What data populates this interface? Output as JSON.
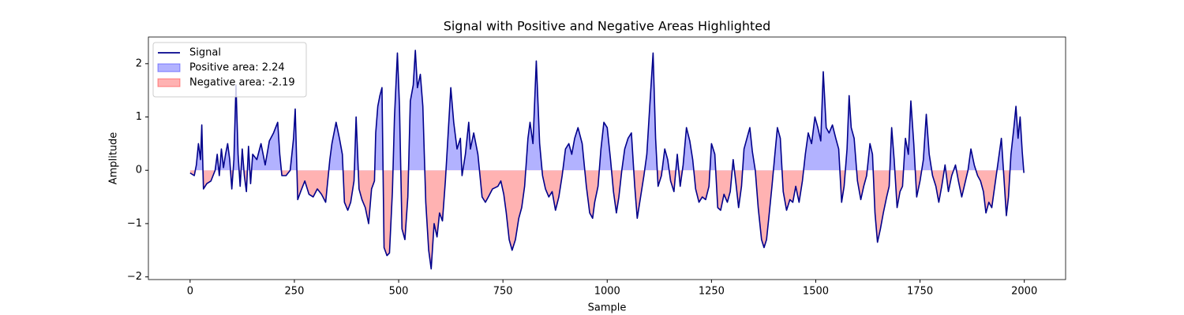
{
  "chart_data": {
    "type": "line",
    "title": "Signal with Positive and Negative Areas Highlighted",
    "x_label": "Sample",
    "y_label": "Amplitude",
    "x": [
      0,
      10,
      15,
      20,
      25,
      28,
      32,
      40,
      50,
      60,
      65,
      70,
      75,
      80,
      85,
      90,
      95,
      100,
      105,
      110,
      115,
      120,
      125,
      130,
      135,
      140,
      145,
      150,
      160,
      170,
      180,
      190,
      200,
      210,
      215,
      220,
      230,
      240,
      248,
      252,
      258,
      265,
      275,
      285,
      295,
      305,
      315,
      325,
      335,
      340,
      350,
      358,
      365,
      370,
      378,
      385,
      393,
      398,
      405,
      412,
      420,
      428,
      435,
      442,
      445,
      450,
      455,
      460,
      465,
      472,
      478,
      485,
      490,
      497,
      502,
      508,
      515,
      522,
      528,
      535,
      540,
      545,
      552,
      558,
      565,
      572,
      578,
      585,
      592,
      598,
      605,
      612,
      618,
      625,
      632,
      640,
      648,
      652,
      660,
      668,
      672,
      680,
      690,
      700,
      708,
      715,
      725,
      738,
      745,
      752,
      758,
      765,
      772,
      780,
      788,
      795,
      802,
      810,
      815,
      822,
      830,
      838,
      845,
      852,
      860,
      868,
      876,
      884,
      892,
      900,
      908,
      915,
      922,
      930,
      940,
      950,
      958,
      965,
      970,
      978,
      985,
      992,
      1000,
      1008,
      1015,
      1022,
      1028,
      1035,
      1042,
      1050,
      1058,
      1066,
      1072,
      1080,
      1088,
      1095,
      1102,
      1110,
      1116,
      1122,
      1130,
      1138,
      1145,
      1152,
      1160,
      1168,
      1175,
      1182,
      1190,
      1198,
      1205,
      1212,
      1220,
      1228,
      1236,
      1244,
      1250,
      1258,
      1265,
      1272,
      1280,
      1288,
      1295,
      1302,
      1308,
      1315,
      1322,
      1328,
      1335,
      1342,
      1348,
      1355,
      1362,
      1370,
      1376,
      1382,
      1388,
      1395,
      1402,
      1408,
      1415,
      1422,
      1430,
      1438,
      1445,
      1452,
      1460,
      1468,
      1475,
      1482,
      1490,
      1498,
      1505,
      1512,
      1518,
      1525,
      1532,
      1540,
      1548,
      1555,
      1562,
      1568,
      1575,
      1580,
      1585,
      1592,
      1600,
      1608,
      1615,
      1622,
      1630,
      1636,
      1642,
      1648,
      1655,
      1662,
      1670,
      1676,
      1682,
      1688,
      1695,
      1702,
      1708,
      1715,
      1722,
      1728,
      1735,
      1742,
      1750,
      1758,
      1765,
      1772,
      1780,
      1788,
      1795,
      1802,
      1810,
      1818,
      1826,
      1835,
      1842,
      1850,
      1856,
      1865,
      1872,
      1880,
      1888,
      1895,
      1902,
      1908,
      1915,
      1922,
      1930,
      1938,
      1945,
      1950,
      1957,
      1962,
      1968,
      1975,
      1980,
      1985,
      1990,
      1995,
      1999
    ],
    "series": [
      {
        "name": "Signal",
        "color": "#00008b",
        "values": [
          -0.05,
          -0.1,
          0.1,
          0.5,
          0.2,
          0.85,
          -0.35,
          -0.25,
          -0.2,
          0.0,
          0.3,
          -0.1,
          0.4,
          0.05,
          0.3,
          0.5,
          0.2,
          -0.35,
          0.2,
          1.6,
          0.3,
          -0.3,
          0.4,
          -0.1,
          -0.4,
          0.45,
          -0.25,
          0.3,
          0.2,
          0.5,
          0.1,
          0.55,
          0.7,
          0.9,
          0.3,
          -0.1,
          -0.1,
          0.0,
          0.6,
          1.15,
          -0.55,
          -0.4,
          -0.2,
          -0.45,
          -0.5,
          -0.35,
          -0.45,
          -0.6,
          0.2,
          0.5,
          0.9,
          0.6,
          0.3,
          -0.6,
          -0.75,
          -0.6,
          -0.2,
          1.0,
          -0.35,
          -0.55,
          -0.7,
          -1.0,
          -0.35,
          -0.2,
          0.7,
          1.2,
          1.4,
          1.55,
          -1.45,
          -1.6,
          -1.55,
          -0.4,
          1.0,
          2.2,
          1.2,
          -1.1,
          -1.3,
          -0.5,
          1.3,
          1.6,
          2.25,
          1.55,
          1.8,
          1.2,
          -0.6,
          -1.5,
          -1.85,
          -1.0,
          -1.25,
          -0.8,
          -0.95,
          -0.2,
          0.6,
          1.55,
          0.9,
          0.4,
          0.6,
          -0.1,
          0.3,
          0.9,
          0.4,
          0.7,
          0.3,
          -0.5,
          -0.6,
          -0.5,
          -0.35,
          -0.3,
          -0.2,
          -0.45,
          -0.8,
          -1.3,
          -1.5,
          -1.3,
          -0.9,
          -0.7,
          -0.3,
          0.6,
          0.9,
          0.5,
          2.05,
          0.5,
          -0.1,
          -0.35,
          -0.5,
          -0.4,
          -0.75,
          -0.5,
          -0.1,
          0.4,
          0.5,
          0.3,
          0.6,
          0.8,
          0.5,
          -0.3,
          -0.8,
          -0.9,
          -0.6,
          -0.3,
          0.4,
          0.9,
          0.8,
          0.2,
          -0.4,
          -0.8,
          -0.5,
          0.0,
          0.4,
          0.6,
          0.7,
          -0.3,
          -0.9,
          -0.5,
          -0.1,
          0.3,
          1.2,
          2.2,
          0.6,
          -0.3,
          -0.1,
          0.4,
          0.2,
          -0.2,
          -0.4,
          0.3,
          -0.3,
          0.1,
          0.8,
          0.55,
          0.2,
          -0.35,
          -0.6,
          -0.5,
          -0.55,
          -0.3,
          0.5,
          0.3,
          -0.7,
          -0.75,
          -0.45,
          -0.6,
          -0.4,
          0.2,
          -0.2,
          -0.7,
          -0.3,
          0.4,
          0.6,
          0.8,
          0.35,
          0.0,
          -0.7,
          -1.3,
          -1.45,
          -1.3,
          -0.85,
          -0.3,
          0.3,
          0.8,
          0.6,
          -0.4,
          -0.75,
          -0.55,
          -0.6,
          -0.3,
          -0.6,
          -0.2,
          0.3,
          0.7,
          0.5,
          1.0,
          0.8,
          0.55,
          1.85,
          0.8,
          0.7,
          0.85,
          0.6,
          0.4,
          -0.6,
          -0.3,
          0.4,
          1.4,
          0.8,
          0.6,
          -0.2,
          -0.55,
          -0.3,
          -0.1,
          0.5,
          0.3,
          -0.8,
          -1.35,
          -1.1,
          -0.8,
          -0.5,
          -0.3,
          0.8,
          0.2,
          -0.7,
          -0.4,
          -0.3,
          0.6,
          0.3,
          1.3,
          0.5,
          -0.5,
          -0.2,
          0.2,
          1.05,
          0.3,
          -0.1,
          -0.3,
          -0.6,
          -0.3,
          0.1,
          -0.4,
          -0.1,
          0.1,
          -0.2,
          -0.5,
          -0.3,
          0.0,
          0.4,
          0.1,
          -0.1,
          -0.2,
          -0.4,
          -0.8,
          -0.6,
          -0.7,
          -0.25,
          0.2,
          0.6,
          0.0,
          -0.85,
          -0.5,
          0.3,
          0.8,
          1.2,
          0.6,
          1.0,
          0.35,
          -0.05
        ]
      }
    ],
    "fills": [
      {
        "name": "Positive area: 2.24",
        "color": "#0000ff",
        "alpha": 0.3,
        "where": "above"
      },
      {
        "name": "Negative area: -2.19",
        "color": "#ff0000",
        "alpha": 0.3,
        "where": "below"
      }
    ],
    "xlim": [
      -100,
      2099
    ],
    "ylim": [
      -2.05,
      2.5
    ],
    "xticks": [
      0,
      250,
      500,
      750,
      1000,
      1250,
      1500,
      1750,
      2000
    ],
    "yticks": [
      {
        "value": -2,
        "label": "−2"
      },
      {
        "value": -1,
        "label": "−1"
      },
      0,
      1,
      2
    ],
    "legend": "upper left"
  }
}
